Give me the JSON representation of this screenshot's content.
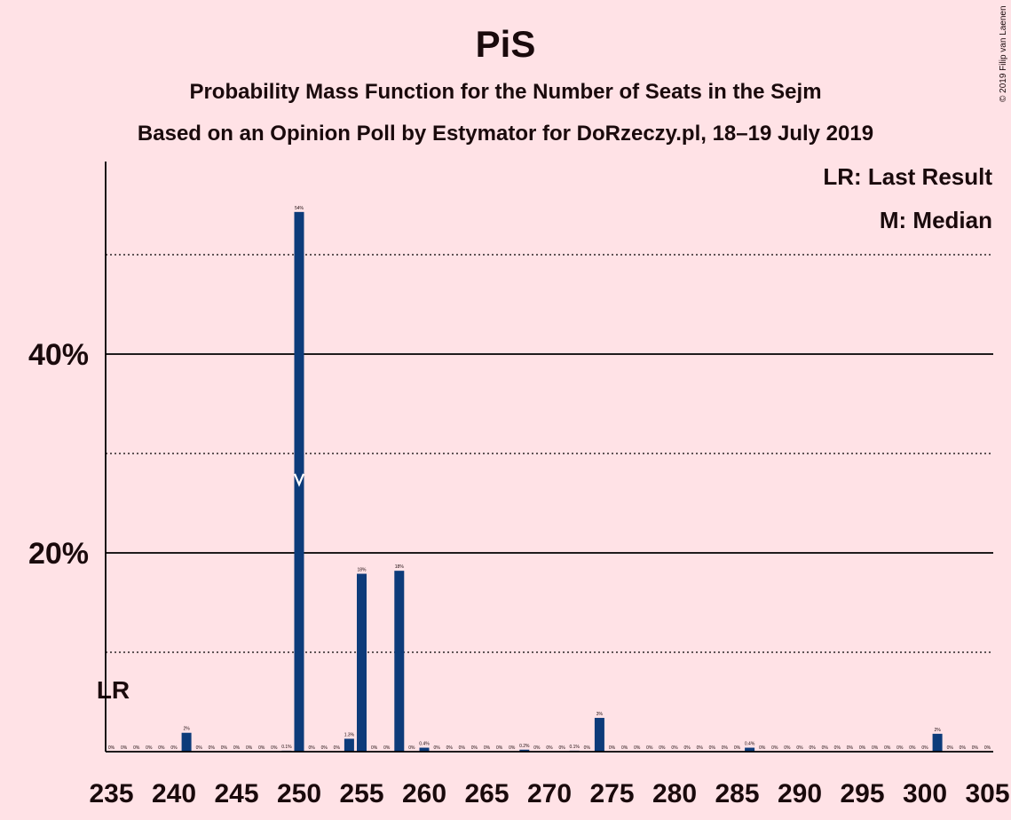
{
  "title": "PiS",
  "subtitle": "Probability Mass Function for the Number of Seats in the Sejm",
  "subtitle2": "Based on an Opinion Poll by Estymator for DoRzeczy.pl, 18–19 July 2019",
  "copyright": "© 2019 Filip van Laenen",
  "legend": {
    "last_result": "LR: Last Result",
    "median": "M: Median"
  },
  "colors": {
    "background": "#ffe2e6",
    "bar": "#0d3b7a",
    "text": "#1a0a0c",
    "grid": "#000000"
  },
  "chart_data": {
    "type": "bar",
    "x": [
      235,
      236,
      237,
      238,
      239,
      240,
      241,
      242,
      243,
      244,
      245,
      246,
      247,
      248,
      249,
      250,
      251,
      252,
      253,
      254,
      255,
      256,
      257,
      258,
      259,
      260,
      261,
      262,
      263,
      264,
      265,
      266,
      267,
      268,
      269,
      270,
      271,
      272,
      273,
      274,
      275,
      276,
      277,
      278,
      279,
      280,
      281,
      282,
      283,
      284,
      285,
      286,
      287,
      288,
      289,
      290,
      291,
      292,
      293,
      294,
      295,
      296,
      297,
      298,
      299,
      300,
      301,
      302,
      303,
      304,
      305
    ],
    "values": [
      0,
      0,
      0,
      0,
      0,
      0,
      1.9,
      0,
      0,
      0,
      0,
      0,
      0,
      0,
      0.1,
      54.3,
      0,
      0,
      0,
      1.3,
      17.9,
      0,
      0,
      18.2,
      0,
      0.4,
      0,
      0,
      0,
      0,
      0,
      0,
      0,
      0.2,
      0,
      0,
      0,
      0.1,
      0,
      3.4,
      0,
      0,
      0,
      0,
      0,
      0,
      0,
      0,
      0,
      0,
      0,
      0.4,
      0,
      0,
      0,
      0,
      0,
      0,
      0,
      0,
      0,
      0,
      0,
      0,
      0,
      0,
      1.8,
      0,
      0,
      0,
      0
    ],
    "value_labels": [
      "0%",
      "0%",
      "0%",
      "0%",
      "0%",
      "0%",
      "2%",
      "0%",
      "0%",
      "0%",
      "0%",
      "0%",
      "0%",
      "0%",
      "0.1%",
      "54%",
      "0%",
      "0%",
      "0%",
      "1.3%",
      "18%",
      "0%",
      "0%",
      "18%",
      "0%",
      "0.4%",
      "0%",
      "0%",
      "0%",
      "0%",
      "0%",
      "0%",
      "0%",
      "0.2%",
      "0%",
      "0%",
      "0%",
      "0.1%",
      "0%",
      "3%",
      "0%",
      "0%",
      "0%",
      "0%",
      "0%",
      "0%",
      "0%",
      "0%",
      "0%",
      "0%",
      "0%",
      "0.4%",
      "0%",
      "0%",
      "0%",
      "0%",
      "0%",
      "0%",
      "0%",
      "0%",
      "0%",
      "0%",
      "0%",
      "0%",
      "0%",
      "0%",
      "2%",
      "0%",
      "0%",
      "0%",
      "0%"
    ],
    "x_ticks": [
      235,
      240,
      245,
      250,
      255,
      260,
      265,
      270,
      275,
      280,
      285,
      290,
      295,
      300,
      305
    ],
    "x_tick_labels": [
      "235",
      "240",
      "245",
      "250",
      "255",
      "260",
      "265",
      "270",
      "275",
      "280",
      "285",
      "290",
      "295",
      "300",
      "305"
    ],
    "y_ticks": [
      20,
      40
    ],
    "y_tick_labels": [
      "20%",
      "40%"
    ],
    "y_minor_gridlines": [
      10,
      30,
      50
    ],
    "ylim": [
      0,
      59
    ],
    "xlim": [
      235,
      305
    ],
    "last_result": {
      "seats": 235,
      "label": "LR"
    },
    "median": {
      "seats": 250,
      "label": "M"
    },
    "grid": true,
    "legend_placement": "top-right"
  }
}
